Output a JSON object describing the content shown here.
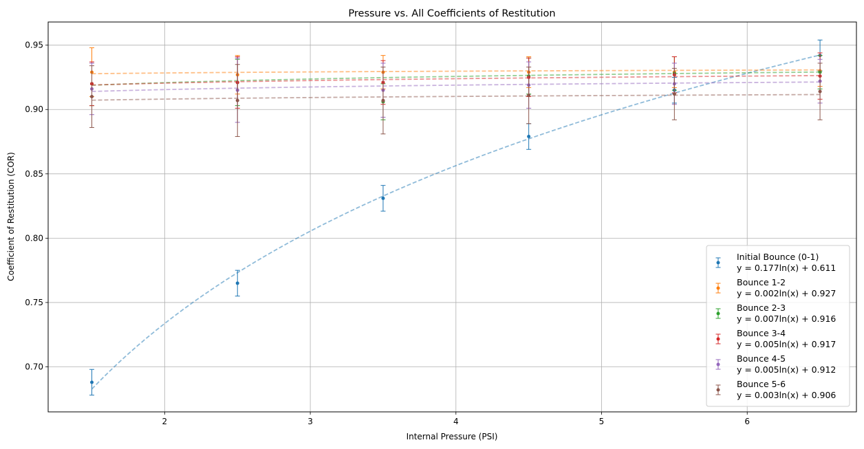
{
  "chart_data": {
    "type": "scatter",
    "title": "Pressure vs. All Coefficients of Restitution",
    "xlabel": "Internal Pressure (PSI)",
    "ylabel": "Coefficient of Restitution (COR)",
    "xlim": [
      1.2,
      6.75
    ],
    "ylim": [
      0.665,
      0.968
    ],
    "xticks": [
      2,
      3,
      4,
      5,
      6
    ],
    "yticks": [
      0.7,
      0.75,
      0.8,
      0.85,
      0.9,
      0.95
    ],
    "grid": true,
    "legend_position": "lower-right",
    "x": [
      1.5,
      2.5,
      3.5,
      4.5,
      5.5,
      6.5
    ],
    "series": [
      {
        "name": "Initial Bounce (0-1)",
        "equation": "y = 0.177ln(x) + 0.611",
        "fit": {
          "a": 0.177,
          "b": 0.611
        },
        "color": "#1f77b4",
        "values": [
          0.688,
          0.765,
          0.831,
          0.879,
          0.915,
          0.942
        ],
        "errors": [
          0.01,
          0.01,
          0.01,
          0.01,
          0.01,
          0.012
        ]
      },
      {
        "name": "Bounce 1-2",
        "equation": "y = 0.002ln(x) + 0.927",
        "fit": {
          "a": 0.002,
          "b": 0.927
        },
        "color": "#ff7f0e",
        "values": [
          0.929,
          0.927,
          0.929,
          0.929,
          0.929,
          0.93
        ],
        "errors": [
          0.019,
          0.015,
          0.013,
          0.012,
          0.012,
          0.012
        ]
      },
      {
        "name": "Bounce 2-3",
        "equation": "y = 0.007ln(x) + 0.916",
        "fit": {
          "a": 0.007,
          "b": 0.916
        },
        "color": "#2ca02c",
        "values": [
          0.92,
          0.921,
          0.906,
          0.926,
          0.928,
          0.929
        ],
        "errors": [
          0.017,
          0.018,
          0.014,
          0.014,
          0.013,
          0.013
        ]
      },
      {
        "name": "Bounce 3-4",
        "equation": "y = 0.005ln(x) + 0.917",
        "fit": {
          "a": 0.005,
          "b": 0.917
        },
        "color": "#d62728",
        "values": [
          0.92,
          0.921,
          0.921,
          0.925,
          0.927,
          0.926
        ],
        "errors": [
          0.017,
          0.02,
          0.017,
          0.015,
          0.014,
          0.018
        ]
      },
      {
        "name": "Bounce 4-5",
        "equation": "y = 0.005ln(x) + 0.912",
        "fit": {
          "a": 0.005,
          "b": 0.912
        },
        "color": "#9467bd",
        "values": [
          0.916,
          0.915,
          0.915,
          0.919,
          0.92,
          0.922
        ],
        "errors": [
          0.02,
          0.025,
          0.021,
          0.018,
          0.016,
          0.017
        ]
      },
      {
        "name": "Bounce 5-6",
        "equation": "y = 0.003ln(x) + 0.906",
        "fit": {
          "a": 0.003,
          "b": 0.906
        },
        "color": "#8c564b",
        "values": [
          0.91,
          0.907,
          0.907,
          0.911,
          0.912,
          0.914
        ],
        "errors": [
          0.024,
          0.028,
          0.026,
          0.022,
          0.02,
          0.022
        ]
      }
    ]
  }
}
